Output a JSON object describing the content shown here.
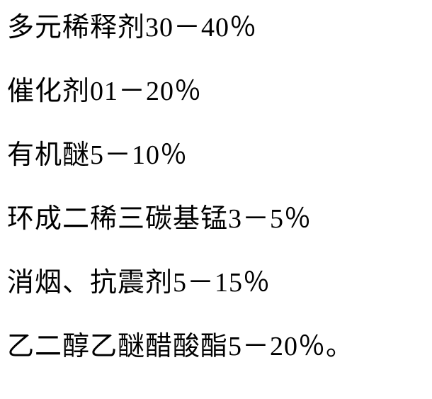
{
  "lines": [
    {
      "text": "多元稀释剂30－40％"
    },
    {
      "text": "催化剂01－20％"
    },
    {
      "text": "有机醚5－10％"
    },
    {
      "text": "环成二稀三碳基锰3－5％"
    },
    {
      "text": "消烟、抗震剂5－15％"
    },
    {
      "text": "乙二醇乙醚醋酸酯5－20％。"
    }
  ],
  "styling": {
    "background_color": "#ffffff",
    "text_color": "#000000",
    "font_size": 38,
    "line_spacing": 52,
    "font_family": "SimSun/宋体"
  }
}
